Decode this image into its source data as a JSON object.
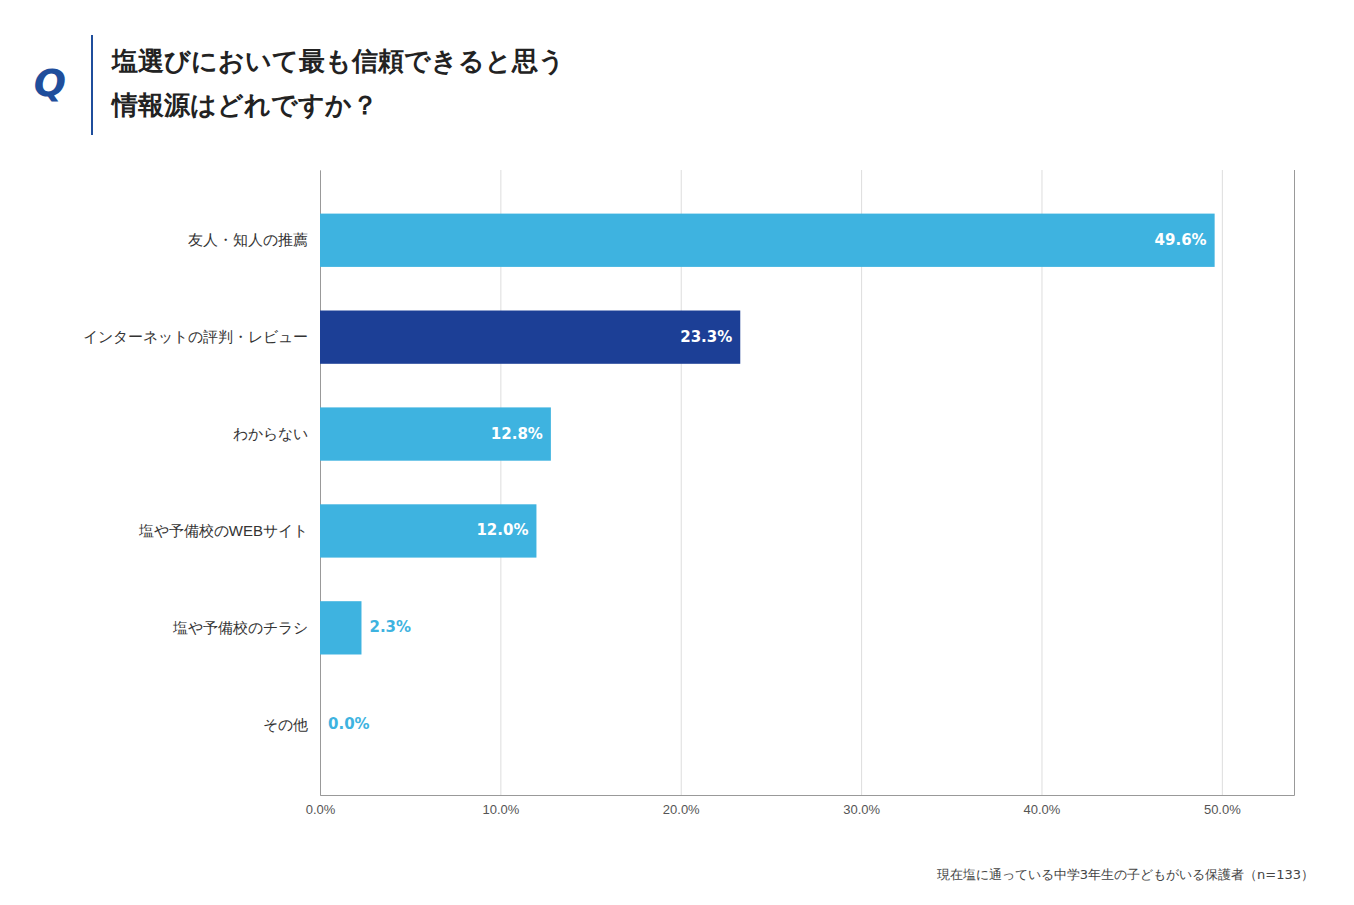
{
  "chart_data": {
    "type": "bar",
    "orientation": "horizontal",
    "title": "塩選びにおいて最も信頼できると思う",
    "subtitle": "情報源はどれですか？",
    "annotations": [
      "Q",
      "現在塩に通っている中学3年生の子どもがいる保護者（n=133）"
    ],
    "categories": [
      "友人・知人の推薦",
      "インターネットの評判・レビュー",
      "わからない",
      "塩や予備校のWEBサイト",
      "塩や予備校のチラシ",
      "その他"
    ],
    "values": [
      49.6,
      23.3,
      12.8,
      12.0,
      2.3,
      0.0
    ],
    "value_labels": [
      "49.6%",
      "23.3%",
      "12.8%",
      "12.0%",
      "2.3%",
      "0.0%"
    ],
    "data_labels": true,
    "colors": [
      "#3eb3e0",
      "#1c3f96",
      "#3eb3e0",
      "#3eb3e0",
      "#3eb3e0",
      "#3eb3e0"
    ],
    "xlim": [
      0,
      54
    ],
    "xticks": [
      {
        "value": 0,
        "label": "0.0%"
      },
      {
        "value": 10,
        "label": "10.0%"
      },
      {
        "value": 20,
        "label": "20.0%"
      },
      {
        "value": 30,
        "label": "30.0%"
      },
      {
        "value": 40,
        "label": "40.0%"
      },
      {
        "value": 50,
        "label": "50.0%"
      }
    ],
    "grid": true
  }
}
